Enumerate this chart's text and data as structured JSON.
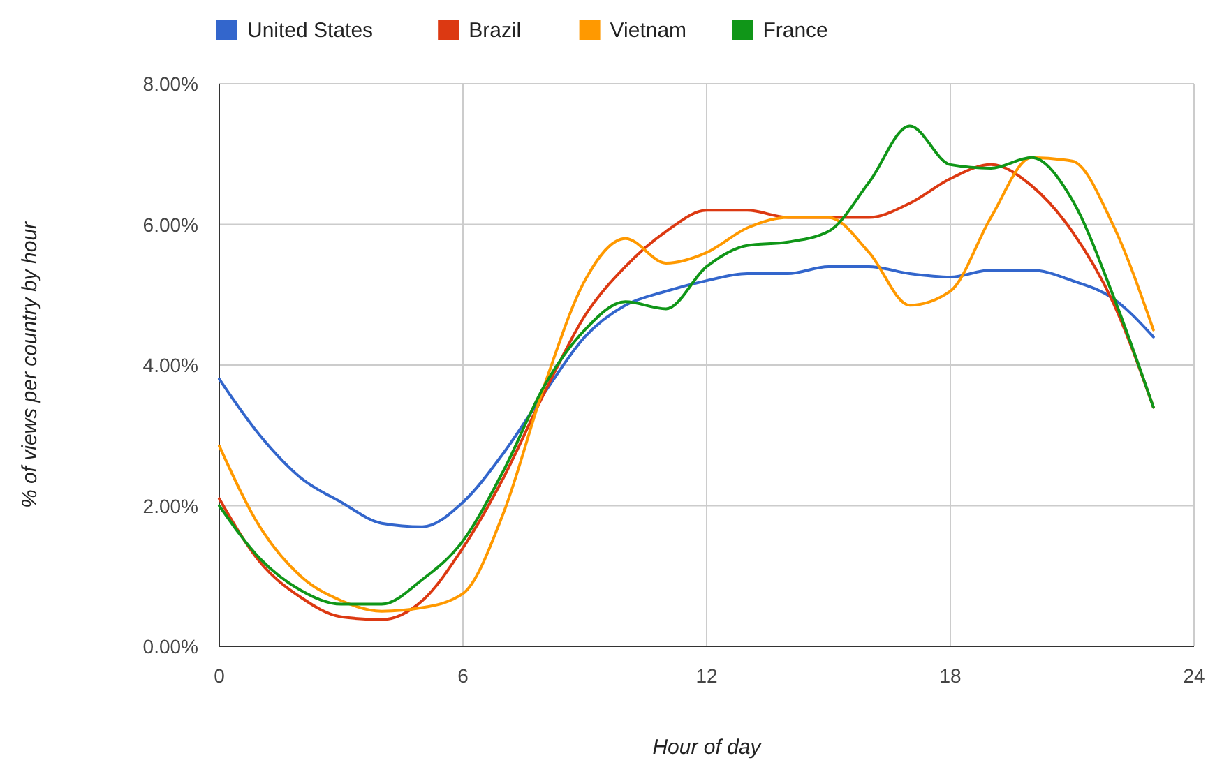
{
  "chart_data": {
    "type": "line",
    "xlabel": "Hour of day",
    "ylabel": "% of views per country by hour",
    "x": [
      0,
      1,
      2,
      3,
      4,
      5,
      6,
      7,
      8,
      9,
      10,
      11,
      12,
      13,
      14,
      15,
      16,
      17,
      18,
      19,
      20,
      21,
      22,
      23
    ],
    "series": [
      {
        "name": "United States",
        "color": "#3366cc",
        "values": [
          3.8,
          3.0,
          2.4,
          2.05,
          1.75,
          1.7,
          2.05,
          2.75,
          3.6,
          4.4,
          4.85,
          5.05,
          5.2,
          5.3,
          5.3,
          5.4,
          5.4,
          5.3,
          5.25,
          5.35,
          5.35,
          5.2,
          4.95,
          4.4
        ]
      },
      {
        "name": "Brazil",
        "color": "#dc3912",
        "values": [
          2.1,
          1.2,
          0.7,
          0.42,
          0.38,
          0.65,
          1.4,
          2.4,
          3.6,
          4.7,
          5.4,
          5.9,
          6.2,
          6.2,
          6.1,
          6.1,
          6.1,
          6.3,
          6.65,
          6.85,
          6.55,
          5.9,
          4.9,
          3.4
        ]
      },
      {
        "name": "Vietnam",
        "color": "#ff9900",
        "values": [
          2.85,
          1.7,
          1.0,
          0.65,
          0.5,
          0.55,
          0.75,
          1.9,
          3.7,
          5.2,
          5.8,
          5.45,
          5.6,
          5.95,
          6.1,
          6.1,
          5.6,
          4.85,
          5.05,
          6.1,
          6.95,
          6.9,
          6.0,
          4.5
        ]
      },
      {
        "name": "France",
        "color": "#109618",
        "values": [
          2.0,
          1.25,
          0.8,
          0.6,
          0.6,
          0.95,
          1.5,
          2.5,
          3.7,
          4.5,
          4.9,
          4.8,
          5.4,
          5.7,
          5.75,
          5.9,
          6.6,
          7.4,
          6.85,
          6.8,
          6.95,
          6.35,
          5.0,
          3.4
        ]
      }
    ],
    "xlim": [
      0,
      24
    ],
    "xticks": [
      0,
      6,
      12,
      18,
      24
    ],
    "ylim": [
      0,
      8
    ],
    "yticks": [
      {
        "value": 0,
        "label": "0.00%"
      },
      {
        "value": 2,
        "label": "2.00%"
      },
      {
        "value": 4,
        "label": "4.00%"
      },
      {
        "value": 6,
        "label": "6.00%"
      },
      {
        "value": 8,
        "label": "8.00%"
      }
    ],
    "grid": true,
    "legend": "top left",
    "marker": "none",
    "line_style": "solid"
  }
}
